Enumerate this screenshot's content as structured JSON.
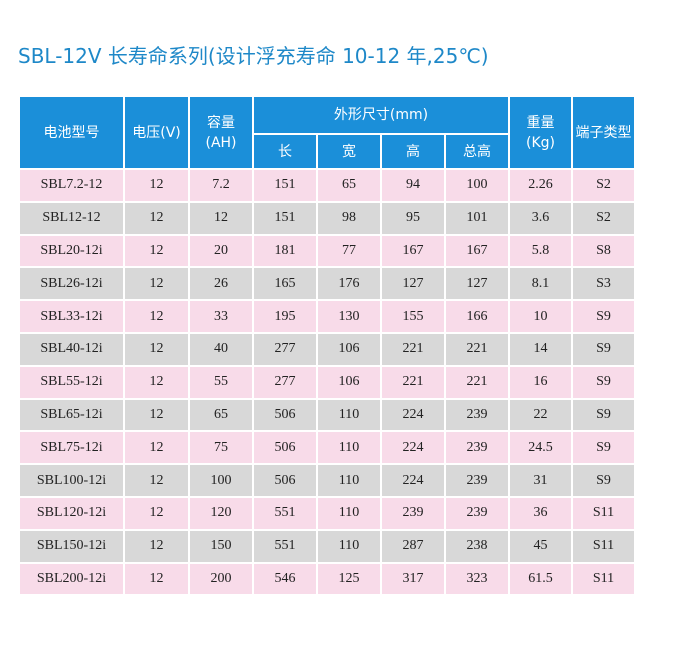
{
  "title": "SBL-12V 长寿命系列(设计浮充寿命 10-12 年,25℃)",
  "table": {
    "columns": [
      "电池型号",
      "电压(V)",
      "容量\n(AH)",
      "外形尺寸(mm)",
      "重量\n(Kg)",
      "端子类型"
    ],
    "sub_columns": [
      "长",
      "宽",
      "高",
      "总高"
    ],
    "rows": [
      [
        "SBL7.2-12",
        12,
        7.2,
        151,
        65,
        94,
        100,
        2.26,
        "S2"
      ],
      [
        "SBL12-12",
        12,
        12,
        151,
        98,
        95,
        101,
        3.6,
        "S2"
      ],
      [
        "SBL20-12i",
        12,
        20,
        181,
        77,
        167,
        167,
        5.8,
        "S8"
      ],
      [
        "SBL26-12i",
        12,
        26,
        165,
        176,
        127,
        127,
        8.1,
        "S3"
      ],
      [
        "SBL33-12i",
        12,
        33,
        195,
        130,
        155,
        166,
        10,
        "S9"
      ],
      [
        "SBL40-12i",
        12,
        40,
        277,
        106,
        221,
        221,
        14,
        "S9"
      ],
      [
        "SBL55-12i",
        12,
        55,
        277,
        106,
        221,
        221,
        16,
        "S9"
      ],
      [
        "SBL65-12i",
        12,
        65,
        506,
        110,
        224,
        239,
        22,
        "S9"
      ],
      [
        "SBL75-12i",
        12,
        75,
        506,
        110,
        224,
        239,
        24.5,
        "S9"
      ],
      [
        "SBL100-12i",
        12,
        100,
        506,
        110,
        224,
        239,
        31,
        "S9"
      ],
      [
        "SBL120-12i",
        12,
        120,
        551,
        110,
        239,
        239,
        36,
        "S11"
      ],
      [
        "SBL150-12i",
        12,
        150,
        551,
        110,
        287,
        238,
        45,
        "S11"
      ],
      [
        "SBL200-12i",
        12,
        200,
        546,
        125,
        317,
        323,
        61.5,
        "S11"
      ]
    ]
  }
}
